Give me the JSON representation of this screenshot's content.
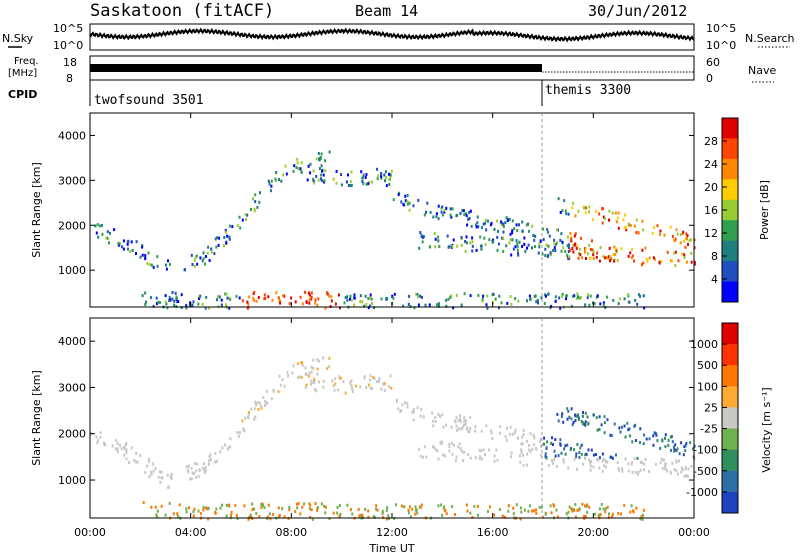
{
  "header": {
    "station": "Saskatoon (fitACF)",
    "beam": "Beam 14",
    "date": "30/Jun/2012"
  },
  "noise_panel": {
    "left_label": "N.Sky",
    "left_ticks": [
      "10^5",
      "10^0"
    ],
    "right_label": "N.Search",
    "right_ticks": [
      "10^5",
      "10^0"
    ]
  },
  "freq_panel": {
    "left_label_line1": "Freq.",
    "left_label_line2": "[MHz]",
    "left_ticks": [
      "18",
      "8"
    ],
    "right_label": "Nave",
    "right_ticks": [
      "60",
      "0"
    ]
  },
  "cpid_panel": {
    "label": "CPID",
    "modes": [
      {
        "name": "twofsound 3501",
        "start": "00:00",
        "end": "18:00"
      },
      {
        "name": "themis 3300",
        "start": "18:00",
        "end": "24:00"
      }
    ]
  },
  "chart_data": [
    {
      "type": "heatmap",
      "title": "",
      "quantity": "Power",
      "ylabel": "Slant Range [km]",
      "ylim": [
        180,
        4500
      ],
      "yticks": [
        "1000",
        "2000",
        "3000",
        "4000"
      ],
      "xticks": [
        "00:00",
        "04:00",
        "08:00",
        "12:00",
        "16:00",
        "20:00",
        "00:00"
      ],
      "colorbar": {
        "label": "Power [dB]",
        "ticks": [
          "28",
          "24",
          "20",
          "16",
          "12",
          "8",
          "4"
        ],
        "range": [
          0,
          30
        ],
        "colors": [
          "#0000ff",
          "#1f4fbf",
          "#1f7f7f",
          "#2f9f4f",
          "#99cc33",
          "#ffcc00",
          "#ff8800",
          "#ff4400",
          "#e00000"
        ]
      }
    },
    {
      "type": "heatmap",
      "title": "",
      "quantity": "Velocity",
      "ylabel": "Slant Range [km]",
      "xlabel": "Time UT",
      "ylim": [
        180,
        4500
      ],
      "yticks": [
        "1000",
        "2000",
        "3000",
        "4000"
      ],
      "xticks": [
        "00:00",
        "04:00",
        "08:00",
        "12:00",
        "16:00",
        "20:00",
        "00:00"
      ],
      "colorbar": {
        "label": "Velocity [m s⁻¹]",
        "ticks": [
          "1000",
          "500",
          "100",
          "25",
          "-25",
          "-100",
          "-500",
          "-1000"
        ],
        "colors": [
          "#2040c0",
          "#2f6fa8",
          "#2f8f5f",
          "#6fb04f",
          "#c8c8c4",
          "#ffaa33",
          "#ff7700",
          "#ff3300",
          "#e00000"
        ]
      }
    }
  ]
}
